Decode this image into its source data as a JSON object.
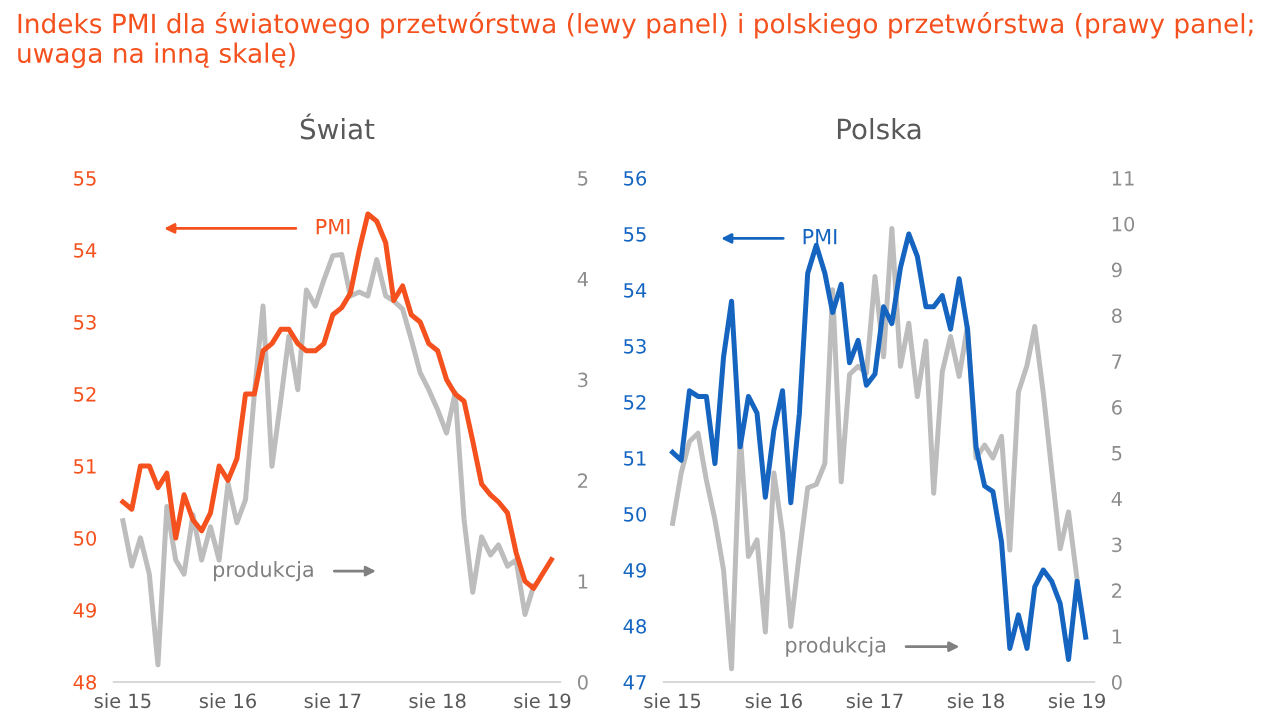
{
  "chart_data": [
    {
      "type": "line",
      "title": "Świat",
      "annotations": [
        "Indeks PMI dla światowego przetwórstwa (lewy panel) i polskiego przetwórstwa (prawy panel; uwaga na inną skalę)"
      ],
      "xlim": [
        "2015-07",
        "2019-10"
      ],
      "xticks": [
        {
          "value": "2015-08",
          "label": "sie 15"
        },
        {
          "value": "2016-08",
          "label": "sie 16"
        },
        {
          "value": "2017-08",
          "label": "sie 17"
        },
        {
          "value": "2018-08",
          "label": "sie 18"
        },
        {
          "value": "2019-08",
          "label": "sie 19"
        }
      ],
      "ylim": [
        48,
        55
      ],
      "yticks": [
        48,
        49,
        50,
        51,
        52,
        53,
        54,
        55
      ],
      "y2lim": [
        0,
        5
      ],
      "y2ticks": [
        0,
        1,
        2,
        3,
        4,
        5
      ],
      "marker": "none",
      "line_style": "solid",
      "series": [
        {
          "name": "produkcja",
          "color": "#bdbdbd",
          "axis": "y2",
          "x": [
            "2015-08",
            "2015-09",
            "2015-10",
            "2015-11",
            "2015-12",
            "2016-01",
            "2016-02",
            "2016-03",
            "2016-04",
            "2016-05",
            "2016-06",
            "2016-07",
            "2016-08",
            "2016-09",
            "2016-10",
            "2016-11",
            "2016-12",
            "2017-01",
            "2017-02",
            "2017-03",
            "2017-04",
            "2017-05",
            "2017-06",
            "2017-07",
            "2017-08",
            "2017-09",
            "2017-10",
            "2017-11",
            "2017-12",
            "2018-01",
            "2018-02",
            "2018-03",
            "2018-04",
            "2018-05",
            "2018-06",
            "2018-07",
            "2018-08",
            "2018-09",
            "2018-10",
            "2018-11",
            "2018-12",
            "2019-01",
            "2019-02",
            "2019-03",
            "2019-04",
            "2019-05",
            "2019-06",
            "2019-07"
          ],
          "values": [
            1.6,
            1.15,
            1.43,
            1.07,
            0.17,
            1.74,
            1.21,
            1.07,
            1.66,
            1.21,
            1.54,
            1.21,
            1.97,
            1.58,
            1.81,
            2.87,
            3.73,
            2.14,
            2.8,
            3.43,
            2.9,
            3.89,
            3.73,
            3.99,
            4.23,
            4.24,
            3.83,
            3.87,
            3.83,
            4.19,
            3.83,
            3.78,
            3.7,
            3.4,
            3.07,
            2.9,
            2.7,
            2.47,
            2.87,
            1.61,
            0.89,
            1.44,
            1.26,
            1.36,
            1.15,
            1.21,
            0.67,
            0.95
          ]
        },
        {
          "name": "PMI",
          "color": "#f4511e",
          "axis": "y",
          "x": [
            "2015-08",
            "2015-09",
            "2015-10",
            "2015-11",
            "2015-12",
            "2016-01",
            "2016-02",
            "2016-03",
            "2016-04",
            "2016-05",
            "2016-06",
            "2016-07",
            "2016-08",
            "2016-09",
            "2016-10",
            "2016-11",
            "2016-12",
            "2017-01",
            "2017-02",
            "2017-03",
            "2017-04",
            "2017-05",
            "2017-06",
            "2017-07",
            "2017-08",
            "2017-09",
            "2017-10",
            "2017-11",
            "2017-12",
            "2018-01",
            "2018-02",
            "2018-03",
            "2018-04",
            "2018-05",
            "2018-06",
            "2018-07",
            "2018-08",
            "2018-09",
            "2018-10",
            "2018-11",
            "2018-12",
            "2019-01",
            "2019-02",
            "2019-03",
            "2019-04",
            "2019-05",
            "2019-06",
            "2019-07",
            "2019-08",
            "2019-09"
          ],
          "values": [
            50.5,
            50.4,
            51.0,
            51.0,
            50.7,
            50.9,
            50.0,
            50.6,
            50.25,
            50.1,
            50.35,
            51.0,
            50.8,
            51.1,
            52.0,
            52.0,
            52.6,
            52.7,
            52.9,
            52.9,
            52.7,
            52.6,
            52.6,
            52.7,
            53.1,
            53.2,
            53.4,
            54.0,
            54.5,
            54.4,
            54.1,
            53.3,
            53.5,
            53.1,
            53.0,
            52.7,
            52.6,
            52.2,
            52.0,
            51.9,
            51.35,
            50.75,
            50.6,
            50.5,
            50.35,
            49.8,
            49.4,
            49.3,
            49.5,
            49.7
          ]
        }
      ]
    },
    {
      "type": "line",
      "title": "Polska",
      "xlim": [
        "2015-07",
        "2019-10"
      ],
      "xticks": [
        {
          "value": "2015-08",
          "label": "sie 15"
        },
        {
          "value": "2016-08",
          "label": "sie 16"
        },
        {
          "value": "2017-08",
          "label": "sie 17"
        },
        {
          "value": "2018-08",
          "label": "sie 18"
        },
        {
          "value": "2019-08",
          "label": "sie 19"
        }
      ],
      "ylim": [
        47,
        56
      ],
      "yticks": [
        47,
        48,
        49,
        50,
        51,
        52,
        53,
        54,
        55,
        56
      ],
      "y2lim": [
        0,
        11
      ],
      "y2ticks": [
        0,
        1,
        2,
        3,
        4,
        5,
        6,
        7,
        8,
        9,
        10,
        11
      ],
      "marker": "none",
      "line_style": "solid",
      "series": [
        {
          "name": "produkcja",
          "color": "#bdbdbd",
          "axis": "y2",
          "x": [
            "2015-08",
            "2015-09",
            "2015-10",
            "2015-11",
            "2015-12",
            "2016-01",
            "2016-02",
            "2016-03",
            "2016-04",
            "2016-05",
            "2016-06",
            "2016-07",
            "2016-08",
            "2016-09",
            "2016-10",
            "2016-11",
            "2016-12",
            "2017-01",
            "2017-02",
            "2017-03",
            "2017-04",
            "2017-05",
            "2017-06",
            "2017-07",
            "2017-08",
            "2017-09",
            "2017-10",
            "2017-11",
            "2017-12",
            "2018-01",
            "2018-02",
            "2018-03",
            "2018-04",
            "2018-05",
            "2018-06",
            "2018-07",
            "2018-08",
            "2018-09",
            "2018-10",
            "2018-11",
            "2018-12",
            "2019-01",
            "2019-02",
            "2019-03",
            "2019-04",
            "2019-05",
            "2019-06",
            "2019-07",
            "2019-08"
          ],
          "values": [
            3.46,
            4.56,
            5.25,
            5.43,
            4.41,
            3.54,
            2.45,
            0.29,
            5.43,
            2.74,
            3.1,
            1.09,
            4.56,
            3.25,
            1.21,
            2.81,
            4.24,
            4.31,
            4.77,
            8.56,
            4.37,
            6.71,
            6.89,
            6.74,
            8.85,
            7.1,
            9.9,
            6.89,
            7.83,
            6.23,
            7.44,
            4.12,
            6.77,
            7.54,
            6.67,
            7.76,
            4.89,
            5.17,
            4.89,
            5.36,
            2.88,
            6.33,
            6.91,
            7.76,
            6.3,
            4.63,
            2.91,
            3.71,
            2.23
          ]
        },
        {
          "name": "PMI",
          "color": "#1565c0",
          "axis": "y",
          "x": [
            "2015-08",
            "2015-09",
            "2015-10",
            "2015-11",
            "2015-12",
            "2016-01",
            "2016-02",
            "2016-03",
            "2016-04",
            "2016-05",
            "2016-06",
            "2016-07",
            "2016-08",
            "2016-09",
            "2016-10",
            "2016-11",
            "2016-12",
            "2017-01",
            "2017-02",
            "2017-03",
            "2017-04",
            "2017-05",
            "2017-06",
            "2017-07",
            "2017-08",
            "2017-09",
            "2017-10",
            "2017-11",
            "2017-12",
            "2018-01",
            "2018-02",
            "2018-03",
            "2018-04",
            "2018-05",
            "2018-06",
            "2018-07",
            "2018-08",
            "2018-09",
            "2018-10",
            "2018-11",
            "2018-12",
            "2019-01",
            "2019-02",
            "2019-03",
            "2019-04",
            "2019-05",
            "2019-06",
            "2019-07",
            "2019-08",
            "2019-09"
          ],
          "values": [
            51.1,
            50.96,
            52.2,
            52.1,
            52.1,
            50.9,
            52.8,
            53.8,
            51.2,
            52.1,
            51.8,
            50.3,
            51.5,
            52.2,
            50.2,
            51.8,
            54.3,
            54.8,
            54.3,
            53.6,
            54.1,
            52.7,
            53.1,
            52.3,
            52.5,
            53.7,
            53.4,
            54.4,
            55.0,
            54.6,
            53.7,
            53.7,
            53.9,
            53.3,
            54.2,
            53.3,
            51.2,
            50.5,
            50.4,
            49.5,
            47.6,
            48.2,
            47.6,
            48.7,
            49.0,
            48.8,
            48.4,
            47.4,
            48.8,
            47.8
          ]
        }
      ]
    }
  ]
}
